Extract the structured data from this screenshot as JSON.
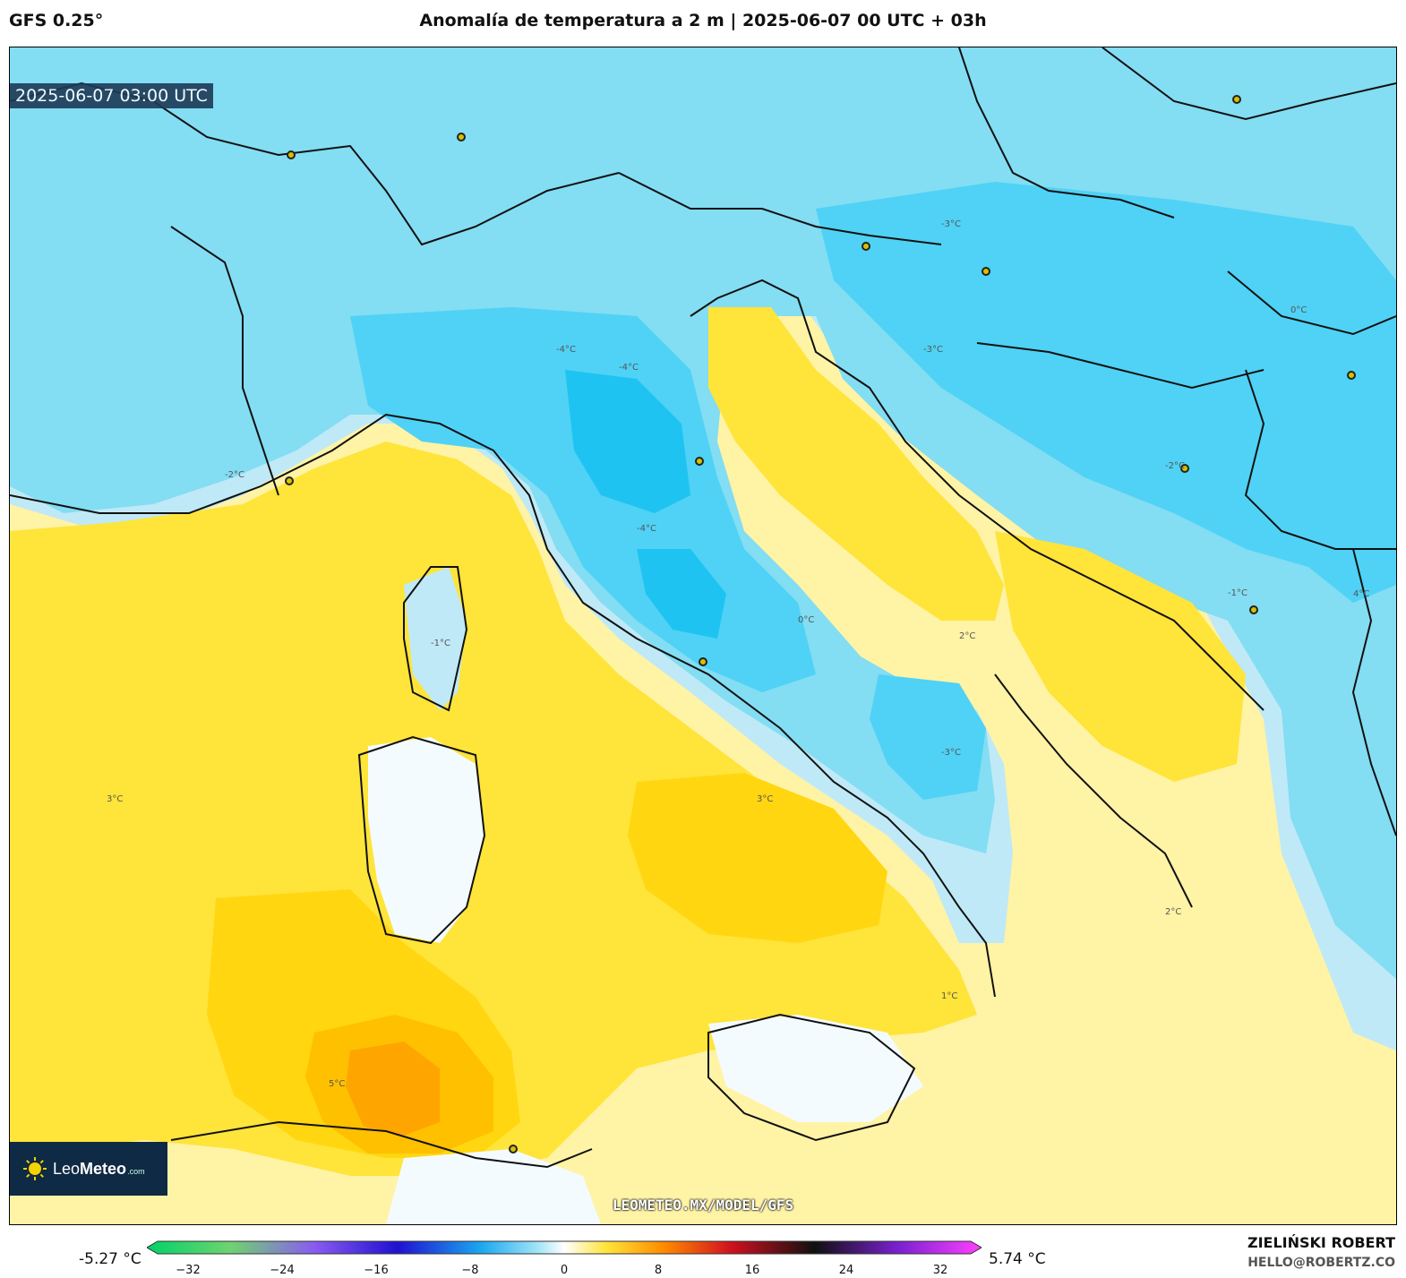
{
  "header": {
    "model": "GFS 0.25°",
    "title": "Anomalía de temperatura a 2 m | 2025-06-07 00 UTC + 03h"
  },
  "map": {
    "valid_time": "2025-06-07 03:00 UTC",
    "watermark": "LEOMETEO.MX/MODEL/GFS",
    "logo": {
      "brand_light": "Leo",
      "brand_bold": "Meteo",
      "suffix": ".com"
    },
    "contour_labels": [
      "-4°C",
      "-3°C",
      "-2°C",
      "-1°C",
      "0°C",
      "1°C",
      "2°C",
      "3°C",
      "4°C",
      "5°C"
    ],
    "colors": {
      "cold_4": "#1fc3f2",
      "cold_3": "#4fd2f5",
      "cold_2": "#83ddf3",
      "cold_1": "#bfe9f7",
      "neutral": "#f4fbff",
      "warm_1": "#fff3a6",
      "warm_2": "#ffe43a",
      "warm_3": "#ffd610",
      "warm_4": "#ffc000",
      "warm_5": "#ffa500",
      "land_border": "#111111"
    }
  },
  "colorbar": {
    "min_label": "-5.27 °C",
    "max_label": "5.74 °C",
    "ticks": [
      "−32",
      "−24",
      "−16",
      "−8",
      "0",
      "8",
      "16",
      "24",
      "32"
    ]
  },
  "footer": {
    "author": "ZIELIŃSKI ROBERT",
    "email": "HELLO@ROBERTZ.CO"
  }
}
